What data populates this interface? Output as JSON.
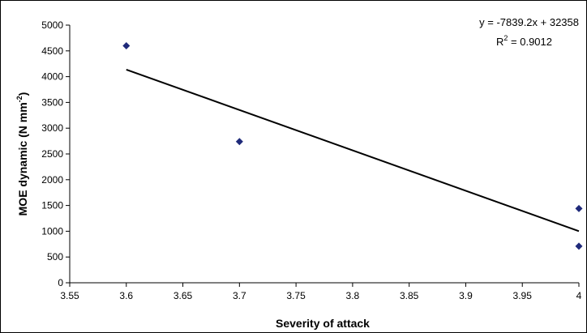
{
  "chart_data": {
    "type": "scatter",
    "title": "",
    "xlabel": "Severity of attack",
    "ylabel_main": "MOE dynamic (N mm",
    "ylabel_sup": "-2",
    "ylabel_close": ")",
    "xlim": [
      3.55,
      4.0
    ],
    "ylim": [
      0,
      5000
    ],
    "xticks": [
      "3.55",
      "3.6",
      "3.65",
      "3.7",
      "3.75",
      "3.8",
      "3.85",
      "3.9",
      "3.95",
      "4"
    ],
    "yticks": [
      "0",
      "500",
      "1000",
      "1500",
      "2000",
      "2500",
      "3000",
      "3500",
      "4000",
      "4500",
      "5000"
    ],
    "xtick_values": [
      3.55,
      3.6,
      3.65,
      3.7,
      3.75,
      3.8,
      3.85,
      3.9,
      3.95,
      4.0
    ],
    "ytick_values": [
      0,
      500,
      1000,
      1500,
      2000,
      2500,
      3000,
      3500,
      4000,
      4500,
      5000
    ],
    "points": [
      {
        "x": 3.6,
        "y": 4600
      },
      {
        "x": 3.7,
        "y": 2740
      },
      {
        "x": 4.0,
        "y": 1440
      },
      {
        "x": 4.0,
        "y": 710
      }
    ],
    "trendline": {
      "slope": -7839.2,
      "intercept": 32358,
      "x_range": [
        3.6,
        4.0
      ],
      "equation": "y = -7839.2x + 32358",
      "r2_prefix": "R",
      "r2_sup": "2",
      "r2_value": " = 0.9012"
    },
    "marker_color": "#1f2a7a",
    "line_color": "#000000",
    "grid": false,
    "legend": "none"
  }
}
